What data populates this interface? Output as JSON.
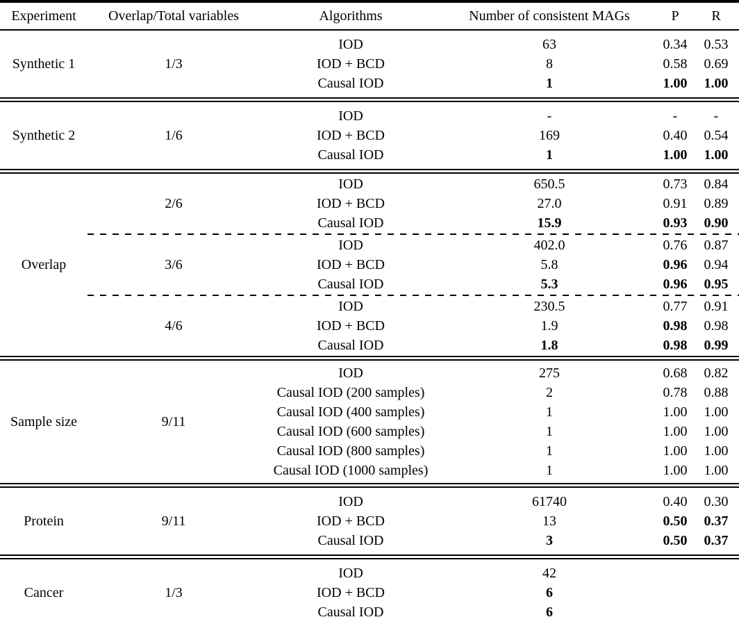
{
  "table": {
    "columns": {
      "experiment": "Experiment",
      "overlap": "Overlap/Total variables",
      "algorithms": "Algorithms",
      "mags": "Number of consistent MAGs",
      "p": "P",
      "r": "R"
    },
    "text_color": "#000000",
    "background_color": "#ffffff",
    "groups": [
      {
        "experiment": "Synthetic 1",
        "blocks": [
          {
            "overlap": "1/3",
            "rows": [
              {
                "algorithm": "IOD",
                "mags": "63",
                "p": "0.34",
                "r": "0.53",
                "bold": []
              },
              {
                "algorithm": "IOD + BCD",
                "mags": "8",
                "p": "0.58",
                "r": "0.69",
                "bold": []
              },
              {
                "algorithm": "Causal IOD",
                "mags": "1",
                "p": "1.00",
                "r": "1.00",
                "bold": [
                  "mags",
                  "p",
                  "r"
                ]
              }
            ]
          }
        ]
      },
      {
        "experiment": "Synthetic 2",
        "blocks": [
          {
            "overlap": "1/6",
            "rows": [
              {
                "algorithm": "IOD",
                "mags": "-",
                "p": "-",
                "r": "-",
                "bold": []
              },
              {
                "algorithm": "IOD + BCD",
                "mags": "169",
                "p": "0.40",
                "r": "0.54",
                "bold": []
              },
              {
                "algorithm": "Causal IOD",
                "mags": "1",
                "p": "1.00",
                "r": "1.00",
                "bold": [
                  "mags",
                  "p",
                  "r"
                ]
              }
            ]
          }
        ]
      },
      {
        "experiment": "Overlap",
        "blocks": [
          {
            "overlap": "2/6",
            "rows": [
              {
                "algorithm": "IOD",
                "mags": "650.5",
                "p": "0.73",
                "r": "0.84",
                "bold": []
              },
              {
                "algorithm": "IOD + BCD",
                "mags": "27.0",
                "p": "0.91",
                "r": "0.89",
                "bold": []
              },
              {
                "algorithm": "Causal IOD",
                "mags": "15.9",
                "p": "0.93",
                "r": "0.90",
                "bold": [
                  "mags",
                  "p",
                  "r"
                ]
              }
            ]
          },
          {
            "overlap": "3/6",
            "rows": [
              {
                "algorithm": "IOD",
                "mags": "402.0",
                "p": "0.76",
                "r": "0.87",
                "bold": []
              },
              {
                "algorithm": "IOD + BCD",
                "mags": "5.8",
                "p": "0.96",
                "r": "0.94",
                "bold": [
                  "p"
                ]
              },
              {
                "algorithm": "Causal IOD",
                "mags": "5.3",
                "p": "0.96",
                "r": "0.95",
                "bold": [
                  "mags",
                  "p",
                  "r"
                ]
              }
            ]
          },
          {
            "overlap": "4/6",
            "rows": [
              {
                "algorithm": "IOD",
                "mags": "230.5",
                "p": "0.77",
                "r": "0.91",
                "bold": []
              },
              {
                "algorithm": "IOD + BCD",
                "mags": "1.9",
                "p": "0.98",
                "r": "0.98",
                "bold": [
                  "p"
                ]
              },
              {
                "algorithm": "Causal IOD",
                "mags": "1.8",
                "p": "0.98",
                "r": "0.99",
                "bold": [
                  "mags",
                  "p",
                  "r"
                ]
              }
            ]
          }
        ]
      },
      {
        "experiment": "Sample size",
        "blocks": [
          {
            "overlap": "9/11",
            "rows": [
              {
                "algorithm": "IOD",
                "mags": "275",
                "p": "0.68",
                "r": "0.82",
                "bold": []
              },
              {
                "algorithm": "Causal IOD (200 samples)",
                "mags": "2",
                "p": "0.78",
                "r": "0.88",
                "bold": []
              },
              {
                "algorithm": "Causal IOD (400 samples)",
                "mags": "1",
                "p": "1.00",
                "r": "1.00",
                "bold": []
              },
              {
                "algorithm": "Causal IOD (600 samples)",
                "mags": "1",
                "p": "1.00",
                "r": "1.00",
                "bold": []
              },
              {
                "algorithm": "Causal IOD (800 samples)",
                "mags": "1",
                "p": "1.00",
                "r": "1.00",
                "bold": []
              },
              {
                "algorithm": "Causal IOD (1000 samples)",
                "mags": "1",
                "p": "1.00",
                "r": "1.00",
                "bold": []
              }
            ]
          }
        ]
      },
      {
        "experiment": "Protein",
        "blocks": [
          {
            "overlap": "9/11",
            "rows": [
              {
                "algorithm": "IOD",
                "mags": "61740",
                "p": "0.40",
                "r": "0.30",
                "bold": []
              },
              {
                "algorithm": "IOD + BCD",
                "mags": "13",
                "p": "0.50",
                "r": "0.37",
                "bold": [
                  "p",
                  "r"
                ]
              },
              {
                "algorithm": "Causal IOD",
                "mags": "3",
                "p": "0.50",
                "r": "0.37",
                "bold": [
                  "mags",
                  "p",
                  "r"
                ]
              }
            ]
          }
        ]
      },
      {
        "experiment": "Cancer",
        "blocks": [
          {
            "overlap": "1/3",
            "rows": [
              {
                "algorithm": "IOD",
                "mags": "42",
                "p": "",
                "r": "",
                "bold": []
              },
              {
                "algorithm": "IOD + BCD",
                "mags": "6",
                "p": "",
                "r": "",
                "bold": [
                  "mags"
                ]
              },
              {
                "algorithm": "Causal IOD",
                "mags": "6",
                "p": "",
                "r": "",
                "bold": [
                  "mags"
                ]
              }
            ]
          }
        ]
      }
    ]
  }
}
